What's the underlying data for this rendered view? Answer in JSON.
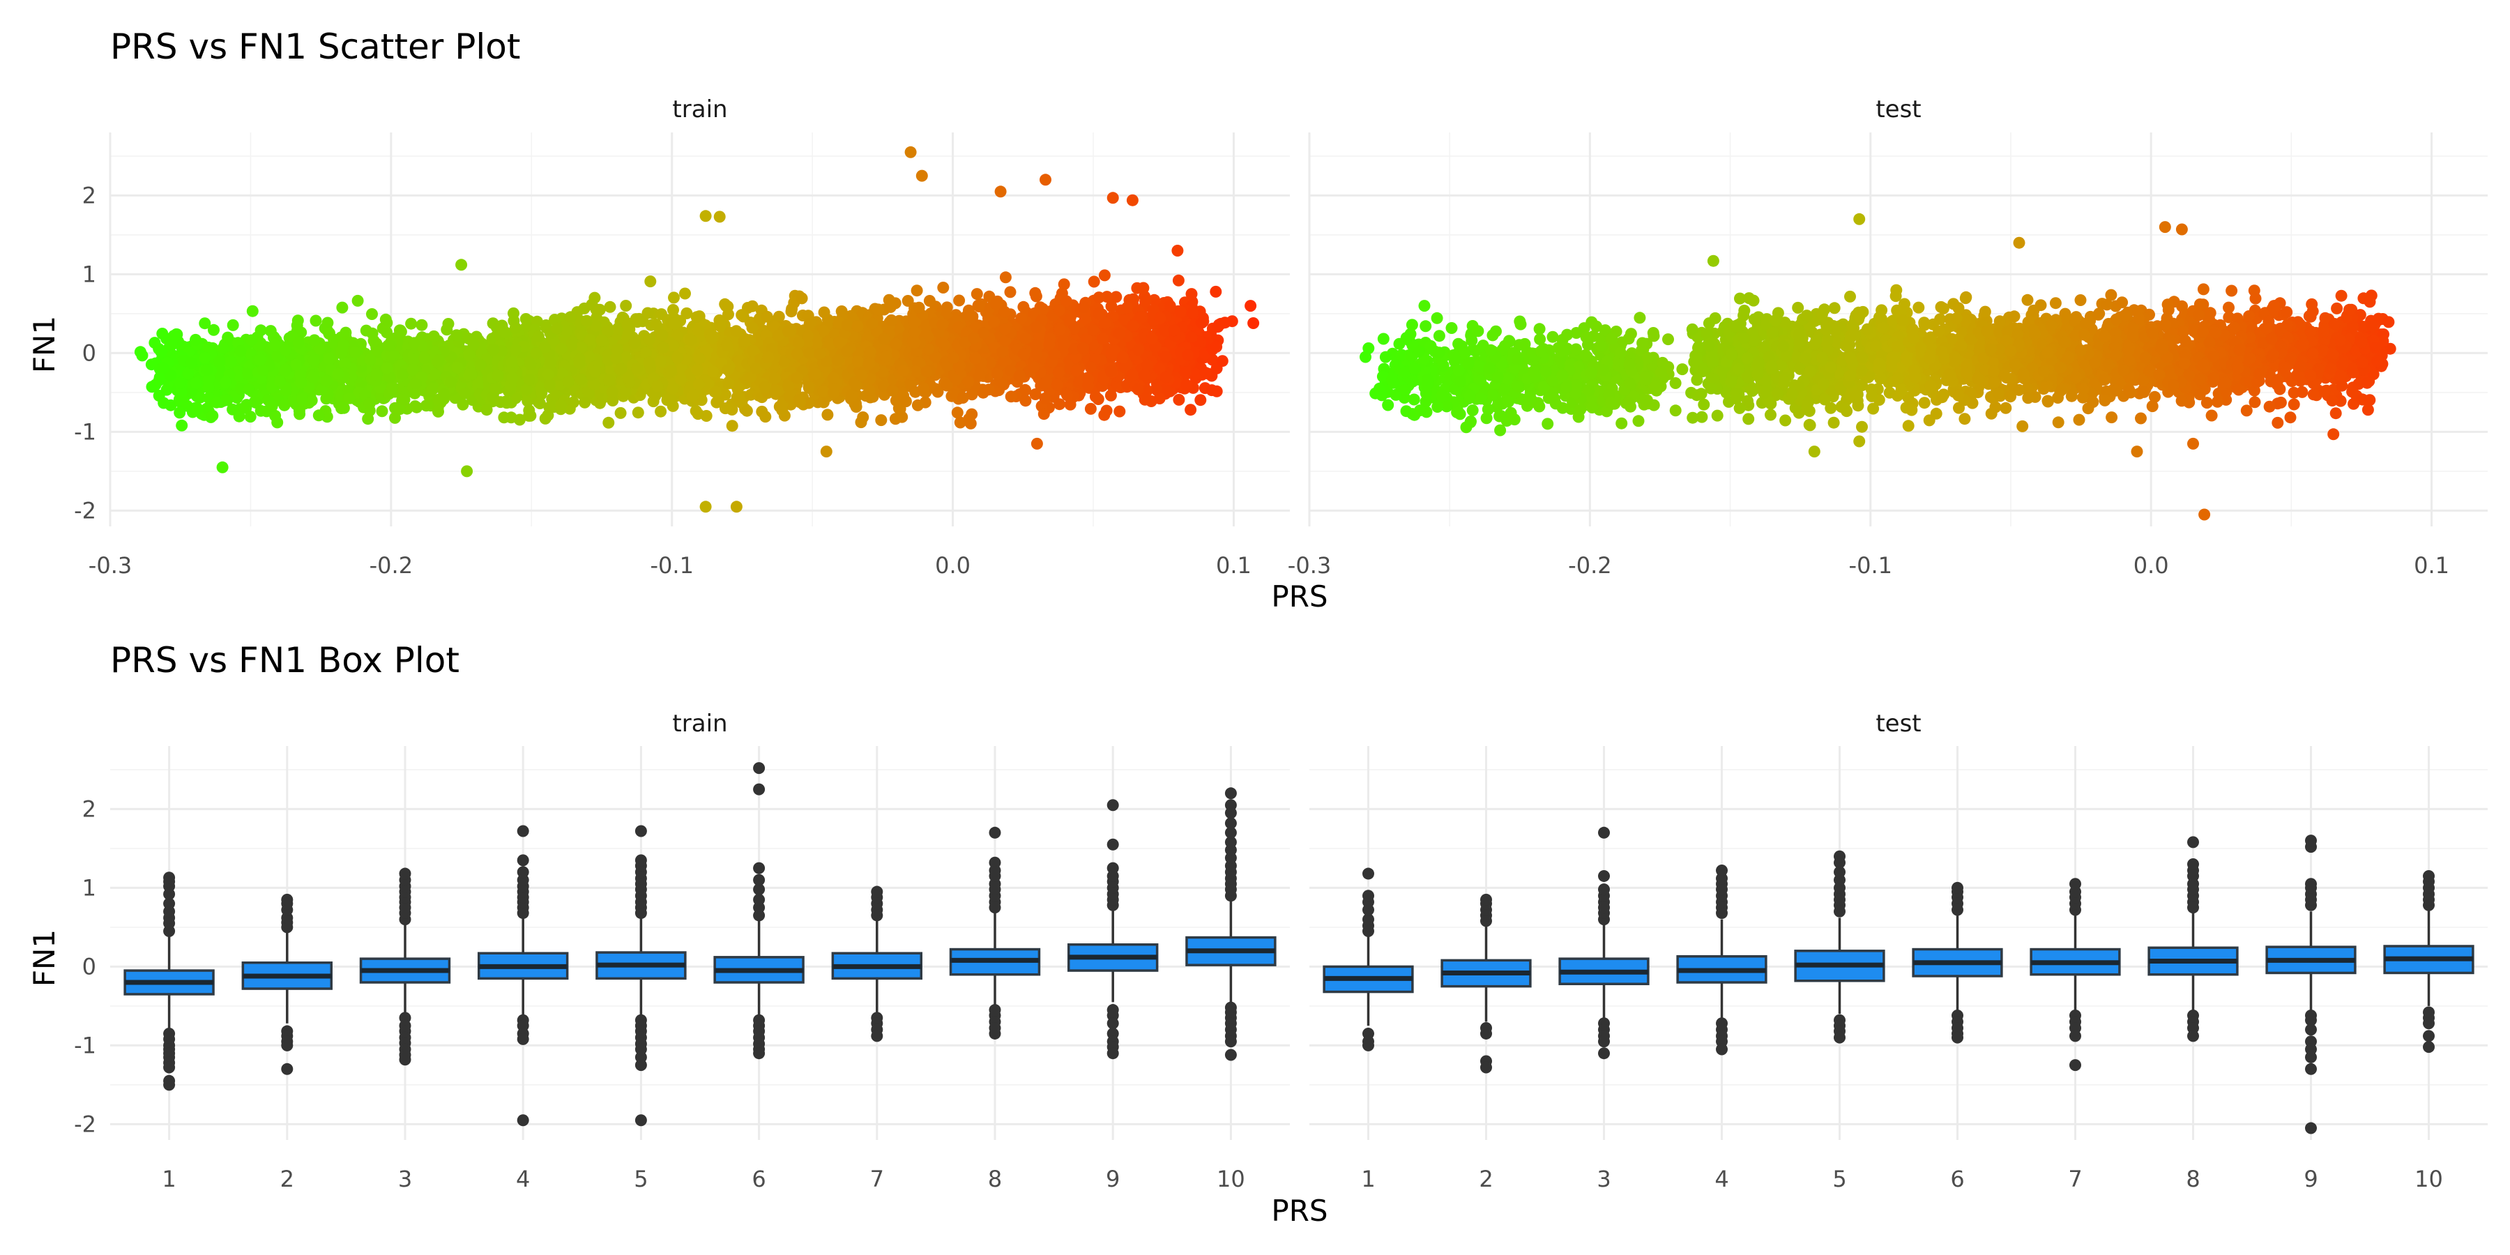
{
  "colors": {
    "low": "#3cff00",
    "mid": "#c2b000",
    "high": "#ff2a00",
    "box_fill": "#1e8cf0",
    "box_line": "#2f3a44",
    "outlier": "#333333",
    "grid": "#ebebeb"
  },
  "chart_data": [
    {
      "type": "scatter",
      "title": "PRS vs FN1 Scatter Plot",
      "xlabel": "PRS",
      "ylabel": "FN1",
      "panels": [
        "train",
        "test"
      ],
      "xlim": [
        -0.3,
        0.12
      ],
      "ylim": [
        -2.2,
        2.8
      ],
      "xticks": [
        -0.3,
        -0.2,
        -0.1,
        0.0,
        0.1
      ],
      "xtick_labels": [
        "-0.3",
        "-0.2",
        "-0.1",
        "0.0",
        "0.1"
      ],
      "yticks": [
        -2,
        -1,
        0,
        1,
        2
      ],
      "ytick_labels": [
        "-2",
        "-1",
        "0",
        "1",
        "2"
      ],
      "grid": true,
      "color_encoding": "color gradient green to red by PRS",
      "series": [
        {
          "panel": "train",
          "clusters": [
            {
              "x_range": [
                -0.28,
                -0.16
              ],
              "center": [
                -0.225,
                -0.2
              ],
              "sd_fn1": 0.25,
              "n": 1400
            },
            {
              "x_range": [
                -0.16,
                -0.03
              ],
              "center": [
                -0.1,
                -0.1
              ],
              "sd_fn1": 0.28,
              "n": 1800
            },
            {
              "x_range": [
                -0.03,
                0.09
              ],
              "center": [
                0.02,
                0.05
              ],
              "sd_fn1": 0.3,
              "n": 1900
            }
          ],
          "notable_points": [
            {
              "x": -0.26,
              "y": -1.45
            },
            {
              "x": -0.173,
              "y": -1.5
            },
            {
              "x": -0.175,
              "y": 1.12
            },
            {
              "x": -0.088,
              "y": -1.95
            },
            {
              "x": -0.077,
              "y": -1.95
            },
            {
              "x": -0.088,
              "y": 1.74
            },
            {
              "x": -0.083,
              "y": 1.73
            },
            {
              "x": -0.015,
              "y": 2.55
            },
            {
              "x": -0.011,
              "y": 2.25
            },
            {
              "x": 0.017,
              "y": 2.05
            },
            {
              "x": 0.033,
              "y": 2.2
            },
            {
              "x": 0.057,
              "y": 1.97
            },
            {
              "x": 0.064,
              "y": 1.94
            },
            {
              "x": 0.08,
              "y": 1.3
            },
            {
              "x": 0.106,
              "y": 0.6
            },
            {
              "x": 0.107,
              "y": 0.38
            },
            {
              "x": 0.096,
              "y": -0.1
            },
            {
              "x": 0.09,
              "y": -0.25
            },
            {
              "x": 0.03,
              "y": -1.15
            },
            {
              "x": -0.045,
              "y": -1.25
            },
            {
              "x": 0.085,
              "y": 0.75
            }
          ]
        },
        {
          "panel": "test",
          "clusters": [
            {
              "x_range": [
                -0.27,
                -0.175
              ],
              "center": [
                -0.225,
                -0.25
              ],
              "sd_fn1": 0.25,
              "n": 700
            },
            {
              "x_range": [
                -0.16,
                0.08
              ],
              "center": [
                -0.06,
                -0.05
              ],
              "sd_fn1": 0.28,
              "n": 2600
            }
          ],
          "notable_points": [
            {
              "x": -0.28,
              "y": -0.05
            },
            {
              "x": -0.275,
              "y": -0.45
            },
            {
              "x": -0.27,
              "y": -0.38
            },
            {
              "x": -0.272,
              "y": -0.66
            },
            {
              "x": -0.259,
              "y": 0.6
            },
            {
              "x": -0.232,
              "y": -0.98
            },
            {
              "x": -0.156,
              "y": 1.17
            },
            {
              "x": -0.104,
              "y": 1.7
            },
            {
              "x": -0.12,
              "y": -1.25
            },
            {
              "x": -0.104,
              "y": -1.12
            },
            {
              "x": -0.047,
              "y": 1.4
            },
            {
              "x": -0.005,
              "y": -1.25
            },
            {
              "x": 0.005,
              "y": 1.6
            },
            {
              "x": 0.011,
              "y": 1.57
            },
            {
              "x": 0.019,
              "y": -2.05
            },
            {
              "x": 0.065,
              "y": -1.03
            },
            {
              "x": 0.078,
              "y": 0.65
            },
            {
              "x": 0.079,
              "y": 0.34
            },
            {
              "x": 0.08,
              "y": 0.07
            },
            {
              "x": 0.015,
              "y": -1.15
            }
          ]
        }
      ]
    },
    {
      "type": "box",
      "title": "PRS vs FN1 Box Plot",
      "xlabel": "PRS",
      "ylabel": "FN1",
      "panels": [
        "train",
        "test"
      ],
      "categories": [
        "1",
        "2",
        "3",
        "4",
        "5",
        "6",
        "7",
        "8",
        "9",
        "10"
      ],
      "ylim": [
        -2.2,
        2.8
      ],
      "yticks": [
        -2,
        -1,
        0,
        1,
        2
      ],
      "ytick_labels": [
        "-2",
        "-1",
        "0",
        "1",
        "2"
      ],
      "grid": true,
      "series": [
        {
          "panel": "train",
          "boxes": [
            {
              "q1": -0.35,
              "median": -0.2,
              "q3": -0.05,
              "whisker_low": -0.78,
              "whisker_high": 0.38,
              "outliers": [
                -0.85,
                -0.92,
                -1.0,
                -1.05,
                -1.1,
                -1.15,
                -1.22,
                -1.28,
                -1.45,
                -1.5,
                0.45,
                0.55,
                0.62,
                0.7,
                0.8,
                0.92,
                1.02,
                1.08,
                1.13
              ]
            },
            {
              "q1": -0.28,
              "median": -0.12,
              "q3": 0.05,
              "whisker_low": -0.72,
              "whisker_high": 0.45,
              "outliers": [
                -0.82,
                -0.88,
                -0.95,
                -1.0,
                -1.3,
                0.5,
                0.56,
                0.62,
                0.72,
                0.8,
                0.85
              ]
            },
            {
              "q1": -0.2,
              "median": -0.05,
              "q3": 0.1,
              "whisker_low": -0.6,
              "whisker_high": 0.55,
              "outliers": [
                -0.65,
                -0.75,
                -0.82,
                -0.9,
                -0.97,
                -1.05,
                -1.12,
                -1.18,
                0.6,
                0.68,
                0.75,
                0.82,
                0.88,
                0.95,
                1.02,
                1.1,
                1.18
              ]
            },
            {
              "q1": -0.15,
              "median": 0.0,
              "q3": 0.17,
              "whisker_low": -0.62,
              "whisker_high": 0.62,
              "outliers": [
                -0.68,
                -0.75,
                -0.85,
                -0.92,
                -1.95,
                0.68,
                0.75,
                0.82,
                0.88,
                0.95,
                1.02,
                1.1,
                1.2,
                1.35,
                1.72
              ]
            },
            {
              "q1": -0.15,
              "median": 0.02,
              "q3": 0.18,
              "whisker_low": -0.62,
              "whisker_high": 0.62,
              "outliers": [
                -0.68,
                -0.75,
                -0.82,
                -0.9,
                -0.98,
                -1.05,
                -1.15,
                -1.25,
                -1.95,
                0.68,
                0.75,
                0.82,
                0.9,
                0.98,
                1.05,
                1.12,
                1.2,
                1.28,
                1.35,
                1.72
              ]
            },
            {
              "q1": -0.2,
              "median": -0.05,
              "q3": 0.12,
              "whisker_low": -0.62,
              "whisker_high": 0.58,
              "outliers": [
                -0.68,
                -0.75,
                -0.82,
                -0.9,
                -0.98,
                -1.05,
                -1.1,
                0.65,
                0.75,
                0.85,
                0.98,
                1.1,
                1.25,
                2.25,
                2.52
              ]
            },
            {
              "q1": -0.15,
              "median": 0.0,
              "q3": 0.17,
              "whisker_low": -0.6,
              "whisker_high": 0.6,
              "outliers": [
                -0.65,
                -0.72,
                -0.8,
                -0.88,
                0.65,
                0.72,
                0.8,
                0.88,
                0.95
              ]
            },
            {
              "q1": -0.1,
              "median": 0.08,
              "q3": 0.22,
              "whisker_low": -0.5,
              "whisker_high": 0.7,
              "outliers": [
                -0.55,
                -0.62,
                -0.7,
                -0.78,
                -0.85,
                0.75,
                0.82,
                0.9,
                0.98,
                1.05,
                1.15,
                1.22,
                1.32,
                1.7
              ]
            },
            {
              "q1": -0.05,
              "median": 0.12,
              "q3": 0.28,
              "whisker_low": -0.45,
              "whisker_high": 0.72,
              "outliers": [
                -0.55,
                -0.62,
                -0.72,
                -0.85,
                -0.95,
                -1.02,
                -1.1,
                0.78,
                0.85,
                0.92,
                1.0,
                1.08,
                1.15,
                1.25,
                1.55,
                2.05
              ]
            },
            {
              "q1": 0.02,
              "median": 0.2,
              "q3": 0.37,
              "whisker_low": -0.45,
              "whisker_high": 0.85,
              "outliers": [
                -0.52,
                -0.58,
                -0.65,
                -0.72,
                -0.8,
                -0.88,
                -0.95,
                -1.12,
                0.9,
                0.98,
                1.05,
                1.12,
                1.2,
                1.28,
                1.38,
                1.48,
                1.58,
                1.7,
                1.82,
                1.95,
                2.05,
                2.2
              ]
            }
          ]
        },
        {
          "panel": "test",
          "boxes": [
            {
              "q1": -0.32,
              "median": -0.15,
              "q3": 0.0,
              "whisker_low": -0.75,
              "whisker_high": 0.4,
              "outliers": [
                -0.85,
                -0.95,
                -1.0,
                0.45,
                0.52,
                0.6,
                0.72,
                0.82,
                0.9,
                1.18
              ]
            },
            {
              "q1": -0.25,
              "median": -0.08,
              "q3": 0.08,
              "whisker_low": -0.7,
              "whisker_high": 0.52,
              "outliers": [
                -0.78,
                -0.85,
                -1.2,
                -1.28,
                0.58,
                0.65,
                0.72,
                0.8,
                0.85
              ]
            },
            {
              "q1": -0.22,
              "median": -0.07,
              "q3": 0.1,
              "whisker_low": -0.65,
              "whisker_high": 0.55,
              "outliers": [
                -0.72,
                -0.8,
                -0.88,
                -0.95,
                -1.1,
                0.6,
                0.68,
                0.75,
                0.82,
                0.9,
                0.98,
                1.15,
                1.7
              ]
            },
            {
              "q1": -0.2,
              "median": -0.05,
              "q3": 0.13,
              "whisker_low": -0.65,
              "whisker_high": 0.6,
              "outliers": [
                -0.72,
                -0.8,
                -0.88,
                -0.95,
                -1.05,
                0.68,
                0.75,
                0.82,
                0.9,
                0.98,
                1.05,
                1.12,
                1.22
              ]
            },
            {
              "q1": -0.18,
              "median": 0.02,
              "q3": 0.2,
              "whisker_low": -0.6,
              "whisker_high": 0.62,
              "outliers": [
                -0.68,
                -0.75,
                -0.82,
                -0.9,
                0.7,
                0.78,
                0.85,
                0.92,
                1.0,
                1.1,
                1.2,
                1.32,
                1.4
              ]
            },
            {
              "q1": -0.12,
              "median": 0.05,
              "q3": 0.22,
              "whisker_low": -0.55,
              "whisker_high": 0.65,
              "outliers": [
                -0.62,
                -0.7,
                -0.78,
                -0.85,
                -0.9,
                0.72,
                0.8,
                0.88,
                0.95,
                1.0
              ]
            },
            {
              "q1": -0.1,
              "median": 0.05,
              "q3": 0.22,
              "whisker_low": -0.55,
              "whisker_high": 0.68,
              "outliers": [
                -0.62,
                -0.7,
                -0.78,
                -0.88,
                -1.25,
                0.72,
                0.8,
                0.88,
                0.95,
                1.05
              ]
            },
            {
              "q1": -0.1,
              "median": 0.07,
              "q3": 0.24,
              "whisker_low": -0.55,
              "whisker_high": 0.68,
              "outliers": [
                -0.62,
                -0.7,
                -0.78,
                -0.88,
                0.75,
                0.82,
                0.9,
                0.98,
                1.05,
                1.15,
                1.22,
                1.3,
                1.58
              ]
            },
            {
              "q1": -0.08,
              "median": 0.08,
              "q3": 0.25,
              "whisker_low": -0.55,
              "whisker_high": 0.7,
              "outliers": [
                -0.62,
                -0.68,
                -0.8,
                -0.95,
                -1.05,
                -1.15,
                -1.3,
                -2.05,
                0.78,
                0.85,
                0.92,
                1.0,
                1.05,
                1.52,
                1.6
              ]
            },
            {
              "q1": -0.08,
              "median": 0.1,
              "q3": 0.26,
              "whisker_low": -0.5,
              "whisker_high": 0.72,
              "outliers": [
                -0.58,
                -0.65,
                -0.72,
                -0.88,
                -1.02,
                0.78,
                0.85,
                0.92,
                1.0,
                1.08,
                1.15
              ]
            }
          ]
        }
      ]
    }
  ]
}
